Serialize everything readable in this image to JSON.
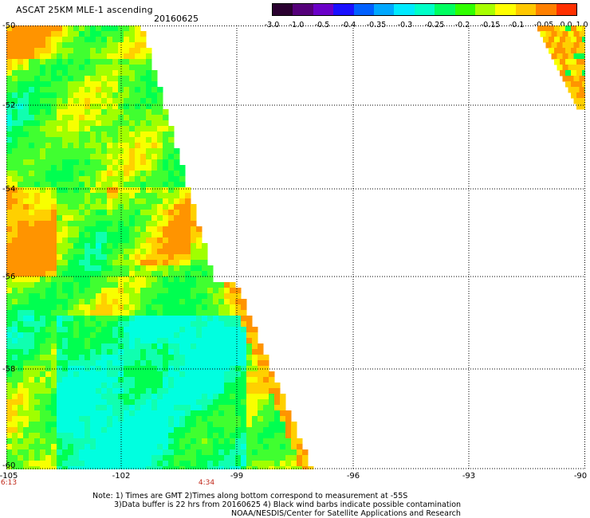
{
  "header": {
    "title": "ASCAT 25KM MLE-1 ascending",
    "date": "20160625"
  },
  "colors": {
    "background": "#ffffff",
    "grid": "#000000",
    "time_label": "#c0281a"
  },
  "colorbar": {
    "labels": [
      "-3.0",
      "-1.0",
      "-0.5",
      "-0.4",
      "-0.35",
      "-0.3",
      "-0.25",
      "-0.2",
      "-0.15",
      "-0.1",
      "-0.05",
      "0.0",
      "1.0"
    ],
    "colors": [
      "#2a0030",
      "#55007a",
      "#6a00c8",
      "#1a10ff",
      "#0060ff",
      "#00a8ff",
      "#00eaff",
      "#00ffc8",
      "#00ff60",
      "#30ff00",
      "#a8ff00",
      "#ffff00",
      "#ffc800",
      "#ff8000",
      "#ff3000"
    ]
  },
  "map": {
    "lat_labels": [
      "-50",
      "-52",
      "-54",
      "-56",
      "-58",
      "-60"
    ],
    "lon_labels": [
      "-105",
      "-102",
      "-99",
      "-96",
      "-93",
      "-90"
    ],
    "time_labels": [
      "6:13",
      "4:34"
    ],
    "lat_range": [
      -60,
      -50
    ],
    "lon_range": [
      -105,
      -90
    ]
  },
  "notes": {
    "line1": "Note: 1) Times are GMT 2)Times along bottom correspond to measurement at -55S",
    "line2": "3)Data buffer is 22 hrs from 20160625 4) Black wind barbs indicate possible contamination",
    "line3": "NOAA/NESDIS/Center for Satellite Applications and Research"
  }
}
